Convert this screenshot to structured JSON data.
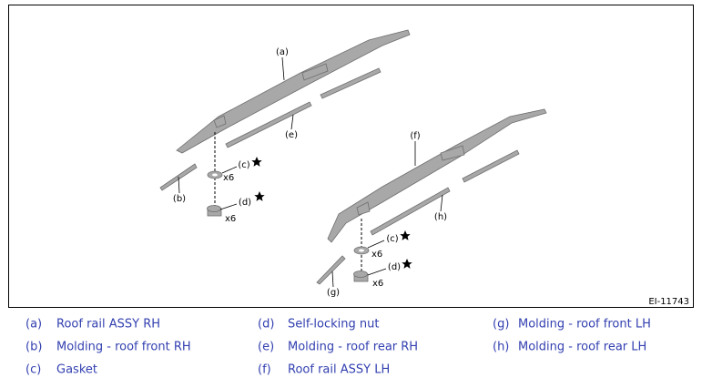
{
  "figure": {
    "id": "EI-11743",
    "callouts": [
      "(a)",
      "(e)",
      "(c)",
      "(d)",
      "(b)",
      "(f)",
      "(h)",
      "(c)",
      "(d)",
      "(g)"
    ],
    "quantities": [
      "x6",
      "x6",
      "x6",
      "x6"
    ]
  },
  "legend": [
    {
      "code": "(a)",
      "text": "Roof rail ASSY RH"
    },
    {
      "code": "(b)",
      "text": "Molding - roof front RH"
    },
    {
      "code": "(c)",
      "text": "Gasket"
    },
    {
      "code": "(d)",
      "text": "Self-locking nut"
    },
    {
      "code": "(e)",
      "text": "Molding - roof rear RH"
    },
    {
      "code": "(f)",
      "text": "Roof rail ASSY LH"
    },
    {
      "code": "(g)",
      "text": "Molding - roof front LH"
    },
    {
      "code": "(h)",
      "text": "Molding - roof rear LH"
    }
  ]
}
